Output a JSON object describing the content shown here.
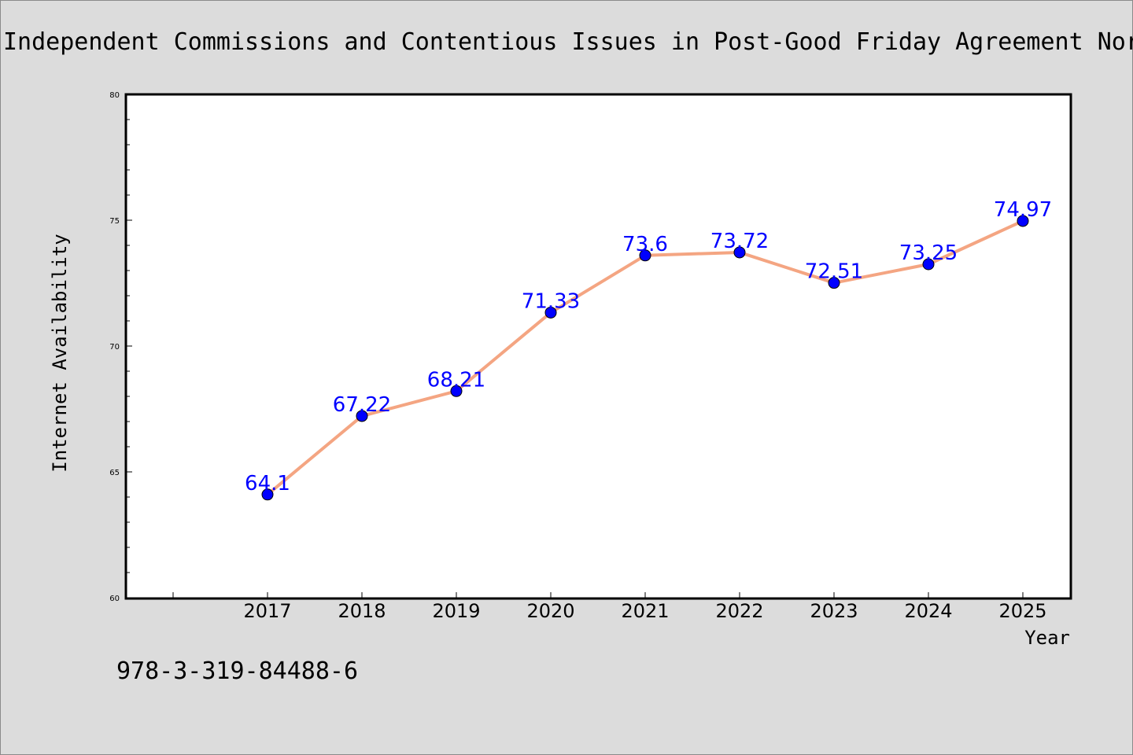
{
  "chart_data": {
    "type": "line",
    "title": "Independent Commissions and Contentious Issues in Post-Good Friday Agreement Nor",
    "xlabel": "Year",
    "ylabel": "Internet Availability",
    "ylim": [
      60,
      80
    ],
    "xlim": [
      2015.5,
      2025.5
    ],
    "y_major_ticks": [
      60,
      65,
      70,
      75,
      80
    ],
    "y_minor_step": 1,
    "x_tick_positions": [
      2016,
      2017,
      2018,
      2019,
      2020,
      2021,
      2022,
      2023,
      2024,
      2025
    ],
    "categories": [
      "2017",
      "2018",
      "2019",
      "2020",
      "2021",
      "2022",
      "2023",
      "2024",
      "2025"
    ],
    "x": [
      2017,
      2018,
      2019,
      2020,
      2021,
      2022,
      2023,
      2024,
      2025
    ],
    "series": [
      {
        "values": [
          64.1,
          67.22,
          68.21,
          71.33,
          73.6,
          73.72,
          72.51,
          73.25,
          74.97
        ],
        "labels": [
          "64.1",
          "67.22",
          "68.21",
          "71.33",
          "73.6",
          "73.72",
          "72.51",
          "73.25",
          "74.97"
        ]
      }
    ],
    "line_color": "#f4a582",
    "marker_color": "#0000ff",
    "label_color": "#0000ff",
    "grid": false,
    "legend": "none"
  },
  "footer": {
    "isbn": "978-3-319-84488-6"
  }
}
